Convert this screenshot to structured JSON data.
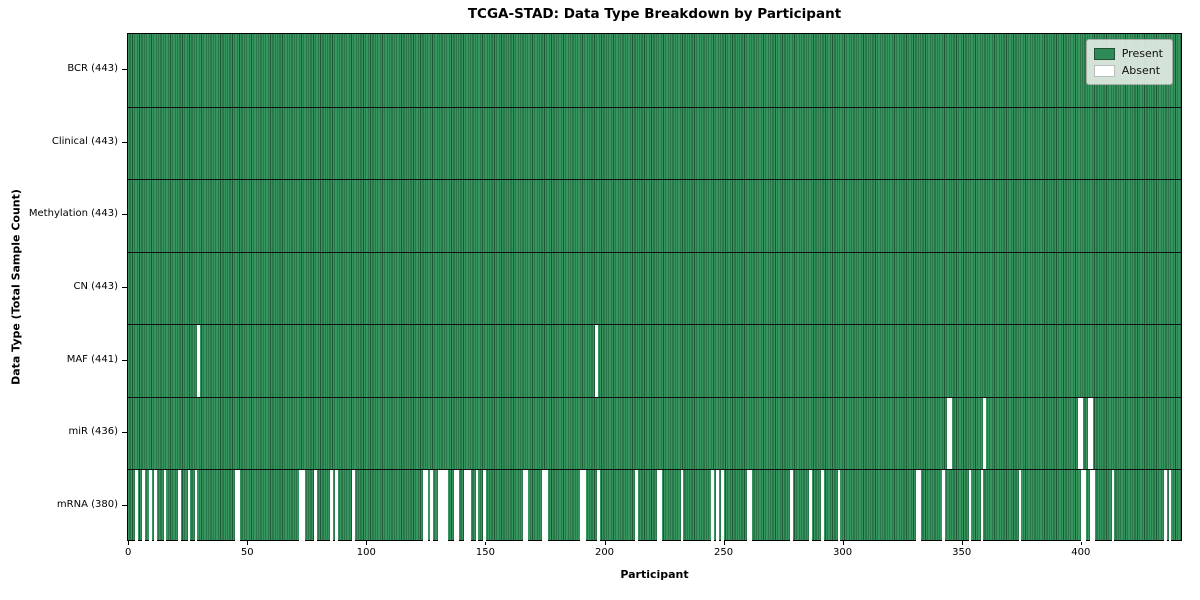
{
  "title": "TCGA-STAD: Data Type Breakdown by Participant",
  "xlabel": "Participant",
  "ylabel": "Data Type (Total Sample Count)",
  "legend": {
    "present_label": "Present",
    "absent_label": "Absent"
  },
  "colors": {
    "present": "#2e8b57",
    "present_texture_light": "#37965f",
    "present_texture_dark": "#1d5836",
    "absent": "#ffffff",
    "frame": "#000000",
    "legend_background": "#e9efe9"
  },
  "x_ticks": [
    0,
    50,
    100,
    150,
    200,
    250,
    300,
    350,
    400
  ],
  "chart_data": {
    "type": "heatmap",
    "title": "TCGA-STAD: Data Type Breakdown by Participant",
    "xlabel": "Participant",
    "ylabel": "Data Type (Total Sample Count)",
    "x_range": [
      0,
      443
    ],
    "n_participants": 443,
    "legend_entries": [
      "Present",
      "Absent"
    ],
    "legend_position": "upper right",
    "grid": false,
    "rows": [
      {
        "label": "BCR (443)",
        "data_type": "BCR",
        "present_count": 443,
        "absent_count": 0,
        "absent_participants": []
      },
      {
        "label": "Clinical (443)",
        "data_type": "Clinical",
        "present_count": 443,
        "absent_count": 0,
        "absent_participants": []
      },
      {
        "label": "Methylation (443)",
        "data_type": "Methylation",
        "present_count": 443,
        "absent_count": 0,
        "absent_participants": []
      },
      {
        "label": "CN (443)",
        "data_type": "CN",
        "present_count": 443,
        "absent_count": 0,
        "absent_participants": []
      },
      {
        "label": "MAF (441)",
        "data_type": "MAF",
        "present_count": 441,
        "absent_count": 2,
        "absent_participants": [
          29,
          196
        ]
      },
      {
        "label": "miR (436)",
        "data_type": "miR",
        "present_count": 436,
        "absent_count": 7,
        "absent_participants": [
          344,
          345,
          359,
          399,
          400,
          403,
          404
        ]
      },
      {
        "label": "mRNA (380)",
        "data_type": "mRNA",
        "present_count": 380,
        "absent_count": 63,
        "absent_participants": [
          3,
          6,
          9,
          11,
          15,
          21,
          25,
          28,
          45,
          46,
          72,
          73,
          78,
          85,
          87,
          94,
          124,
          125,
          127,
          130,
          131,
          132,
          133,
          137,
          138,
          141,
          142,
          143,
          146,
          149,
          166,
          167,
          174,
          175,
          190,
          191,
          197,
          213,
          222,
          223,
          232,
          245,
          247,
          249,
          260,
          261,
          278,
          286,
          291,
          298,
          331,
          332,
          342,
          353,
          358,
          374,
          400,
          401,
          404,
          405,
          413,
          435,
          437
        ]
      }
    ]
  }
}
